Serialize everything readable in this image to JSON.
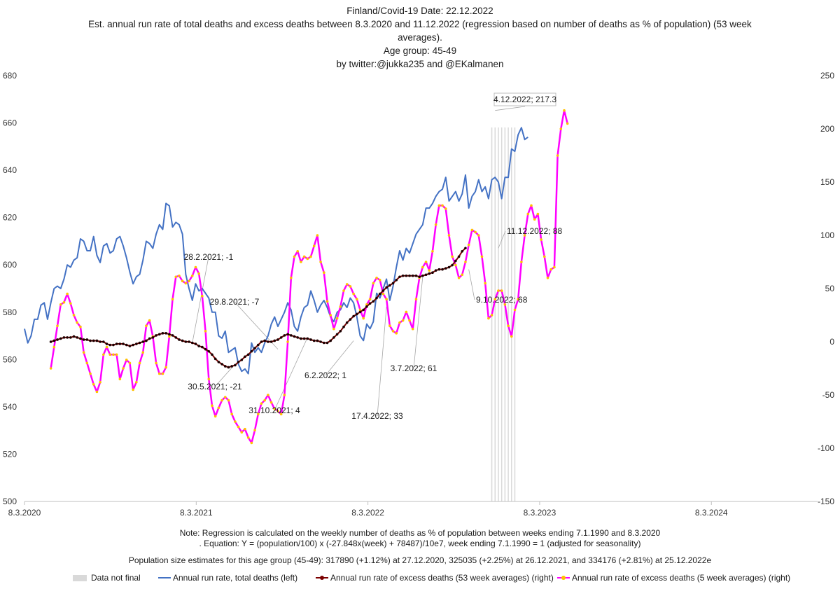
{
  "title": {
    "line1": "Finland/Covid-19  Date: 22.12.2022",
    "line2": "Est. annual run rate of total deaths and excess deaths between 8.3.2020 and 11.12.2022 (regression based on number of deaths as % of population) (53 week averages).",
    "line3": "Age group: 45-49",
    "line4": "by twitter:@jukka235 and @EKalmanen"
  },
  "notes": {
    "line1": "Note: Regression is calculated on the weekly number of deaths as % of population between weeks ending 7.1.1990 and 8.3.2020",
    "line2": ". Equation: Y = (population/100) x (-27.848x(week) + 78487)/10e7, week ending 7.1.1990 = 1 (adjusted for seasonality)",
    "line3": "Population size estimates for this age group (45-49): 317890 (+1.12%) at 27.12.2020, 325035 (+2.25%) at 26.12.2021, and 334176 (+2.81%) at 25.12.2022e"
  },
  "legend": {
    "not_final": "Data not final",
    "total": "Annual run rate, total deaths (left)",
    "excess53": "Annual run rate of excess deaths (53 week averages) (right)",
    "excess5": "Annual run rate of excess deaths (5 week averages) (right)"
  },
  "colors": {
    "total": "#4472c4",
    "excess53": "#7b0000",
    "excess5": "#ff00ff",
    "marker5": "#ffc000",
    "notfinal": "#d9d9d9"
  },
  "chart_data": {
    "type": "line",
    "x_axis": {
      "start": "8.3.2020",
      "end": "8.3.2024+",
      "tick_labels": [
        "8.3.2020",
        "8.3.2021",
        "8.3.2022",
        "8.3.2023",
        "8.3.2024"
      ],
      "unit": "weeks since 8.3.2020",
      "range": [
        0,
        241
      ]
    },
    "y_left": {
      "range": [
        500,
        680
      ],
      "ticks": [
        500,
        520,
        540,
        560,
        580,
        600,
        620,
        640,
        660,
        680
      ]
    },
    "y_right": {
      "range": [
        -150,
        250
      ],
      "ticks": [
        "-150",
        "-100",
        "-50",
        "0",
        "50",
        "100",
        "150",
        "200",
        "250"
      ]
    },
    "not_final_weeks": [
      142,
      143,
      144,
      145,
      146,
      147,
      148,
      149
    ],
    "series": [
      {
        "name": "Annual run rate, total deaths (left)",
        "axis": "left",
        "start_week": 0,
        "values": [
          573,
          567,
          570,
          577,
          577,
          583,
          584,
          577,
          584,
          590,
          591,
          590,
          594,
          600,
          599,
          602,
          603,
          611,
          610,
          606,
          606,
          612,
          604,
          601,
          608,
          609,
          605,
          606,
          611,
          612,
          608,
          603,
          597,
          592,
          595,
          596,
          602,
          610,
          609,
          607,
          613,
          617,
          615,
          626,
          625,
          616,
          618,
          617,
          613,
          596,
          590,
          585,
          592,
          589,
          590,
          588,
          586,
          580,
          580,
          570,
          569,
          572,
          563,
          564,
          565,
          558,
          555,
          556,
          554,
          567,
          563,
          565,
          563,
          567,
          570,
          575,
          578,
          574,
          577,
          580,
          584,
          581,
          574,
          572,
          578,
          582,
          583,
          589,
          585,
          580,
          583,
          585,
          582,
          578,
          576,
          580,
          581,
          584,
          582,
          586,
          584,
          578,
          570,
          568,
          575,
          573,
          576,
          588,
          586,
          590,
          594,
          585,
          591,
          599,
          606,
          602,
          607,
          605,
          609,
          613,
          615,
          617,
          624,
          624,
          626,
          629,
          631,
          632,
          637,
          627,
          629,
          631,
          627,
          630,
          638,
          624,
          629,
          631,
          636,
          631,
          633,
          628,
          636,
          637,
          635,
          628,
          637,
          637,
          649,
          648,
          655,
          658,
          653,
          654
        ],
        "points_note": "blue line, x from week 0"
      },
      {
        "name": "Annual run rate of excess deaths (53 week averages) (right)",
        "axis": "right",
        "start_week": 8,
        "values": [
          0,
          1,
          2,
          3,
          4,
          4,
          4,
          5,
          4,
          3,
          2,
          2,
          1,
          1,
          1,
          0,
          0,
          -2,
          -3,
          -3,
          -2,
          -2,
          -2,
          -3,
          -4,
          -3,
          -2,
          -1,
          0,
          1,
          3,
          4,
          6,
          7,
          8,
          8,
          7,
          6,
          4,
          2,
          1,
          0,
          0,
          -1,
          -2,
          -4,
          -5,
          -7,
          -9,
          -12,
          -16,
          -19,
          -21,
          -23,
          -24,
          -23,
          -22,
          -19,
          -17,
          -14,
          -12,
          -9,
          -6,
          -3,
          0,
          1,
          0,
          0,
          1,
          2,
          4,
          6,
          7,
          6,
          5,
          4,
          3,
          3,
          3,
          2,
          1,
          1,
          0,
          -1,
          -1,
          1,
          4,
          7,
          10,
          14,
          18,
          21,
          24,
          26,
          28,
          30,
          33,
          36,
          38,
          41,
          45,
          48,
          51,
          53,
          55,
          58,
          61,
          62,
          62,
          62,
          62,
          62,
          61,
          62,
          63,
          64,
          65,
          67,
          68,
          68,
          69,
          70,
          72,
          76,
          80,
          85,
          88
        ],
        "points_note": "dark red dotted line"
      },
      {
        "name": "Annual run rate of excess deaths (5 week averages) (right)",
        "axis": "right",
        "start_week": 8,
        "values": [
          -25,
          -5,
          15,
          35,
          37,
          45,
          36,
          25,
          18,
          14,
          -10,
          -20,
          -30,
          -40,
          -47,
          -38,
          -12,
          -5,
          -12,
          -12,
          -12,
          -35,
          -25,
          -17,
          -20,
          -45,
          -38,
          -20,
          -10,
          15,
          20,
          5,
          -20,
          -30,
          -30,
          -24,
          5,
          40,
          61,
          62,
          57,
          55,
          57,
          62,
          70,
          64,
          43,
          10,
          -35,
          -60,
          -70,
          -62,
          -55,
          -52,
          -55,
          -68,
          -75,
          -80,
          -85,
          -82,
          -90,
          -95,
          -83,
          -68,
          -58,
          -55,
          -50,
          -57,
          -63,
          -65,
          -68,
          -50,
          0,
          60,
          80,
          85,
          75,
          80,
          78,
          80,
          90,
          100,
          75,
          65,
          38,
          25,
          12,
          22,
          33,
          48,
          54,
          52,
          45,
          40,
          30,
          22,
          35,
          40,
          55,
          60,
          58,
          45,
          40,
          15,
          10,
          8,
          18,
          20,
          28,
          20,
          12,
          40,
          60,
          70,
          75,
          67,
          85,
          110,
          128,
          128,
          125,
          100,
          80,
          72,
          60,
          63,
          75,
          91,
          105,
          103,
          100,
          80,
          55,
          22,
          25,
          40,
          48,
          48,
          35,
          15,
          5,
          30,
          40,
          75,
          100,
          120,
          128,
          115,
          120,
          96,
          80,
          60,
          68,
          70,
          175,
          200,
          217.3,
          205
        ],
        "points_note": "magenta line with yellow markers"
      }
    ],
    "annotations": [
      {
        "label": "28.2.2021; -1",
        "week": 51,
        "value": -1
      },
      {
        "label": "30.5.2021; -21",
        "week": 64,
        "value": -21
      },
      {
        "label": "29.8.2021; -7",
        "week": 77,
        "value": -7
      },
      {
        "label": "31.10.2021; 4",
        "week": 86,
        "value": 4
      },
      {
        "label": "6.2.2022; 1",
        "week": 100,
        "value": 1
      },
      {
        "label": "17.4.2022; 33",
        "week": 110,
        "value": 33
      },
      {
        "label": "3.7.2022; 61",
        "week": 121,
        "value": 61
      },
      {
        "label": "9.10.2022; 68",
        "week": 135,
        "value": 68
      },
      {
        "label": "11.12.2022; 88",
        "week": 144,
        "value": 88
      },
      {
        "label": "4.12.2022; 217.3",
        "week": 143,
        "value": 217.3
      }
    ]
  }
}
